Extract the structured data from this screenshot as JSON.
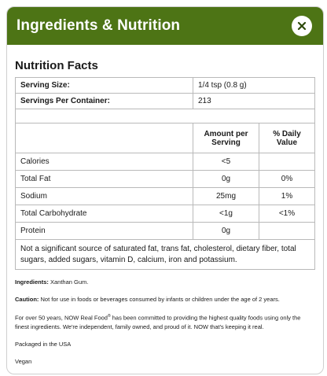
{
  "header": {
    "title": "Ingredients & Nutrition",
    "close_icon": "close-icon"
  },
  "nutrition": {
    "title": "Nutrition Facts",
    "serving_size_label": "Serving Size:",
    "serving_size_value": "1/4 tsp (0.8 g)",
    "servings_label": "Servings Per Container:",
    "servings_value": "213",
    "col_amount": "Amount per Serving",
    "col_dv": "% Daily Value",
    "rows": [
      {
        "name": "Calories",
        "amount": "<5",
        "dv": ""
      },
      {
        "name": "Total Fat",
        "amount": "0g",
        "dv": "0%"
      },
      {
        "name": "Sodium",
        "amount": "25mg",
        "dv": "1%"
      },
      {
        "name": "Total Carbohydrate",
        "amount": "<1g",
        "dv": "<1%"
      },
      {
        "name": "Protein",
        "amount": "0g",
        "dv": ""
      }
    ],
    "footnote": "Not a significant source of saturated fat, trans fat, cholesterol, dietary fiber, total sugars, added sugars, vitamin D, calcium, iron and potassium."
  },
  "info": {
    "ingredients_label": "Ingredients:",
    "ingredients_text": " Xanthan Gum.",
    "caution_label": "Caution:",
    "caution_text": " Not for use in foods or beverages consumed by infants or children under the age of 2 years.",
    "about_text_1": "For over 50 years, NOW Real Food",
    "about_reg": "®",
    "about_text_2": " has been committed to providing the highest quality foods using only the finest ingredients. We're independent, family owned, and proud of it. NOW that's keeping it real.",
    "packaged": "Packaged in the USA",
    "vegan": "Vegan"
  },
  "colors": {
    "header_bg": "#4d7415",
    "header_text": "#ffffff"
  }
}
